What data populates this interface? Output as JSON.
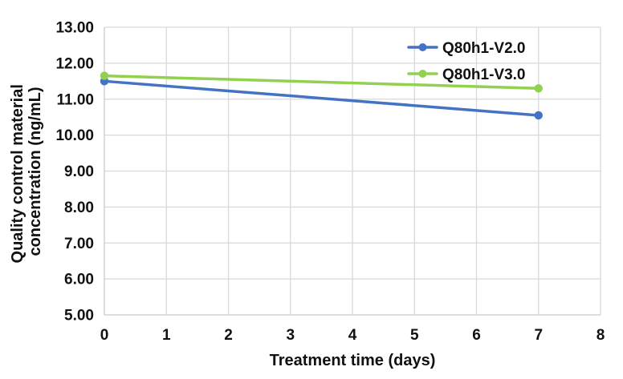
{
  "chart_data": {
    "type": "line",
    "title": "",
    "xlabel": "Treatment time (days)",
    "ylabel_lines": [
      "Quality control material",
      "concentration (ng/mL)"
    ],
    "x": [
      0,
      7
    ],
    "series": [
      {
        "name": "Q80h1-V2.0",
        "color": "#4472C4",
        "values": [
          11.5,
          10.55
        ]
      },
      {
        "name": "Q80h1-V3.0",
        "color": "#92D050",
        "values": [
          11.65,
          11.3
        ]
      }
    ],
    "xlim": [
      0,
      8
    ],
    "ylim": [
      5.0,
      13.0
    ],
    "x_ticks": [
      0,
      1,
      2,
      3,
      4,
      5,
      6,
      7,
      8
    ],
    "y_ticks": [
      5,
      6,
      7,
      8,
      9,
      10,
      11,
      12,
      13
    ],
    "y_tick_decimals": 2,
    "grid": true,
    "legend_position": "inside-top-right",
    "marker": "circle",
    "gridline_color": "#D9D9D9",
    "axis_line_color": "#C9C9C9",
    "text_color": "#111111",
    "background": "#FFFFFF"
  }
}
